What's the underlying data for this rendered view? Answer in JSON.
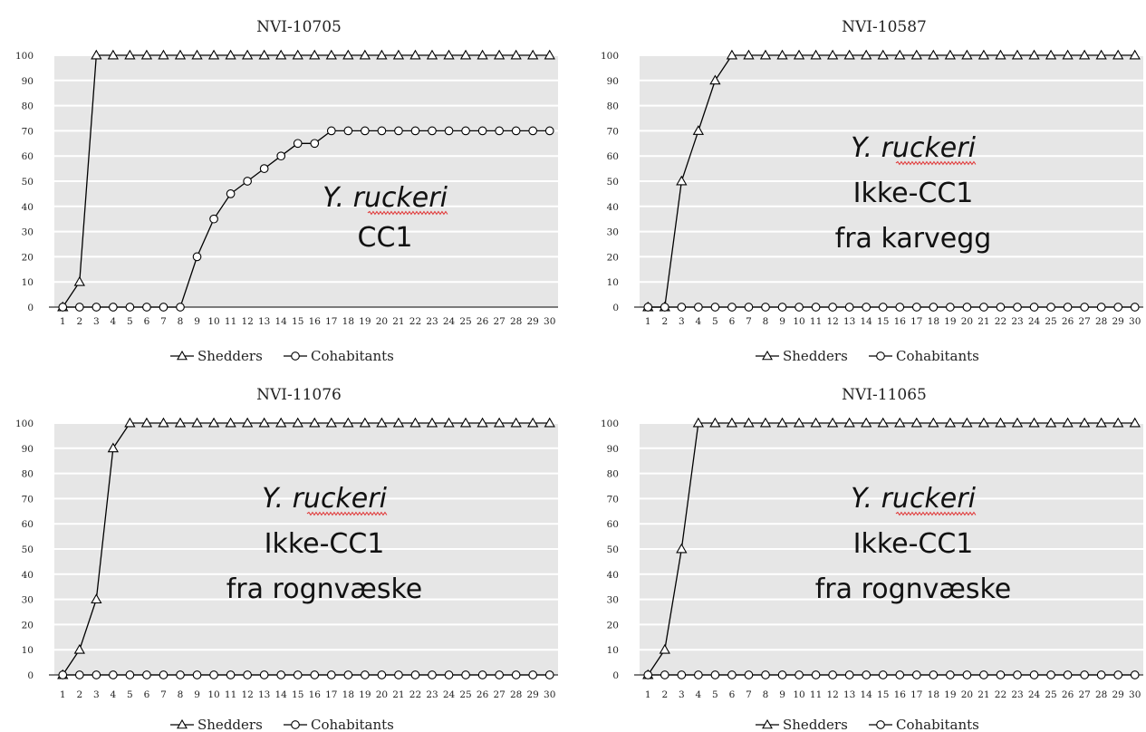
{
  "chart_data": [
    {
      "type": "line",
      "title": "NVI-10705",
      "x": [
        1,
        2,
        3,
        4,
        5,
        6,
        7,
        8,
        9,
        10,
        11,
        12,
        13,
        14,
        15,
        16,
        17,
        18,
        19,
        20,
        21,
        22,
        23,
        24,
        25,
        26,
        27,
        28,
        29,
        30
      ],
      "ylim": [
        0,
        100
      ],
      "yticks": [
        0,
        10,
        20,
        30,
        40,
        50,
        60,
        70,
        80,
        90,
        100
      ],
      "grid": "horizontal",
      "legend": "bottom",
      "series": [
        {
          "name": "Shedders",
          "marker": "triangle",
          "values": [
            0,
            10,
            100,
            100,
            100,
            100,
            100,
            100,
            100,
            100,
            100,
            100,
            100,
            100,
            100,
            100,
            100,
            100,
            100,
            100,
            100,
            100,
            100,
            100,
            100,
            100,
            100,
            100,
            100,
            100
          ]
        },
        {
          "name": "Cohabitants",
          "marker": "circle",
          "values": [
            0,
            0,
            0,
            0,
            0,
            0,
            0,
            0,
            20,
            35,
            45,
            50,
            55,
            60,
            65,
            65,
            70,
            70,
            70,
            70,
            70,
            70,
            70,
            70,
            70,
            70,
            70,
            70,
            70,
            70
          ]
        }
      ],
      "annotation": {
        "species": "Y. ruckeri",
        "lines": [
          "CC1"
        ]
      }
    },
    {
      "type": "line",
      "title": "NVI-10587",
      "x": [
        1,
        2,
        3,
        4,
        5,
        6,
        7,
        8,
        9,
        10,
        11,
        12,
        13,
        14,
        15,
        16,
        17,
        18,
        19,
        20,
        21,
        22,
        23,
        24,
        25,
        26,
        27,
        28,
        29,
        30
      ],
      "ylim": [
        0,
        100
      ],
      "yticks": [
        0,
        10,
        20,
        30,
        40,
        50,
        60,
        70,
        80,
        90,
        100
      ],
      "grid": "horizontal",
      "legend": "bottom",
      "series": [
        {
          "name": "Shedders",
          "marker": "triangle",
          "values": [
            0,
            0,
            50,
            70,
            90,
            100,
            100,
            100,
            100,
            100,
            100,
            100,
            100,
            100,
            100,
            100,
            100,
            100,
            100,
            100,
            100,
            100,
            100,
            100,
            100,
            100,
            100,
            100,
            100,
            100
          ]
        },
        {
          "name": "Cohabitants",
          "marker": "circle",
          "values": [
            0,
            0,
            0,
            0,
            0,
            0,
            0,
            0,
            0,
            0,
            0,
            0,
            0,
            0,
            0,
            0,
            0,
            0,
            0,
            0,
            0,
            0,
            0,
            0,
            0,
            0,
            0,
            0,
            0,
            0
          ]
        }
      ],
      "annotation": {
        "species": "Y. ruckeri",
        "lines": [
          "Ikke-CC1",
          "fra karvegg"
        ]
      }
    },
    {
      "type": "line",
      "title": "NVI-11076",
      "x": [
        1,
        2,
        3,
        4,
        5,
        6,
        7,
        8,
        9,
        10,
        11,
        12,
        13,
        14,
        15,
        16,
        17,
        18,
        19,
        20,
        21,
        22,
        23,
        24,
        25,
        26,
        27,
        28,
        29,
        30
      ],
      "ylim": [
        0,
        100
      ],
      "yticks": [
        0,
        10,
        20,
        30,
        40,
        50,
        60,
        70,
        80,
        90,
        100
      ],
      "grid": "horizontal",
      "legend": "bottom",
      "series": [
        {
          "name": "Shedders",
          "marker": "triangle",
          "values": [
            0,
            10,
            30,
            90,
            100,
            100,
            100,
            100,
            100,
            100,
            100,
            100,
            100,
            100,
            100,
            100,
            100,
            100,
            100,
            100,
            100,
            100,
            100,
            100,
            100,
            100,
            100,
            100,
            100,
            100
          ]
        },
        {
          "name": "Cohabitants",
          "marker": "circle",
          "values": [
            0,
            0,
            0,
            0,
            0,
            0,
            0,
            0,
            0,
            0,
            0,
            0,
            0,
            0,
            0,
            0,
            0,
            0,
            0,
            0,
            0,
            0,
            0,
            0,
            0,
            0,
            0,
            0,
            0,
            0
          ]
        }
      ],
      "annotation": {
        "species": "Y. ruckeri",
        "lines": [
          "Ikke-CC1",
          "fra rognvæske"
        ]
      }
    },
    {
      "type": "line",
      "title": "NVI-11065",
      "x": [
        1,
        2,
        3,
        4,
        5,
        6,
        7,
        8,
        9,
        10,
        11,
        12,
        13,
        14,
        15,
        16,
        17,
        18,
        19,
        20,
        21,
        22,
        23,
        24,
        25,
        26,
        27,
        28,
        29,
        30
      ],
      "ylim": [
        0,
        100
      ],
      "yticks": [
        0,
        10,
        20,
        30,
        40,
        50,
        60,
        70,
        80,
        90,
        100
      ],
      "grid": "horizontal",
      "legend": "bottom",
      "series": [
        {
          "name": "Shedders",
          "marker": "triangle",
          "values": [
            0,
            10,
            50,
            100,
            100,
            100,
            100,
            100,
            100,
            100,
            100,
            100,
            100,
            100,
            100,
            100,
            100,
            100,
            100,
            100,
            100,
            100,
            100,
            100,
            100,
            100,
            100,
            100,
            100,
            100
          ]
        },
        {
          "name": "Cohabitants",
          "marker": "circle",
          "values": [
            0,
            0,
            0,
            0,
            0,
            0,
            0,
            0,
            0,
            0,
            0,
            0,
            0,
            0,
            0,
            0,
            0,
            0,
            0,
            0,
            0,
            0,
            0,
            0,
            0,
            0,
            0,
            0,
            0,
            0
          ]
        }
      ],
      "annotation": {
        "species": "Y. ruckeri",
        "lines": [
          "Ikke-CC1",
          "fra rognvæske"
        ]
      }
    }
  ],
  "colors": {
    "plot_background": "#e6e6e6",
    "gridline": "#ffffff",
    "line": "#000000",
    "marker_fill": "#ffffff",
    "spellcheck_underline": "#e03030"
  }
}
